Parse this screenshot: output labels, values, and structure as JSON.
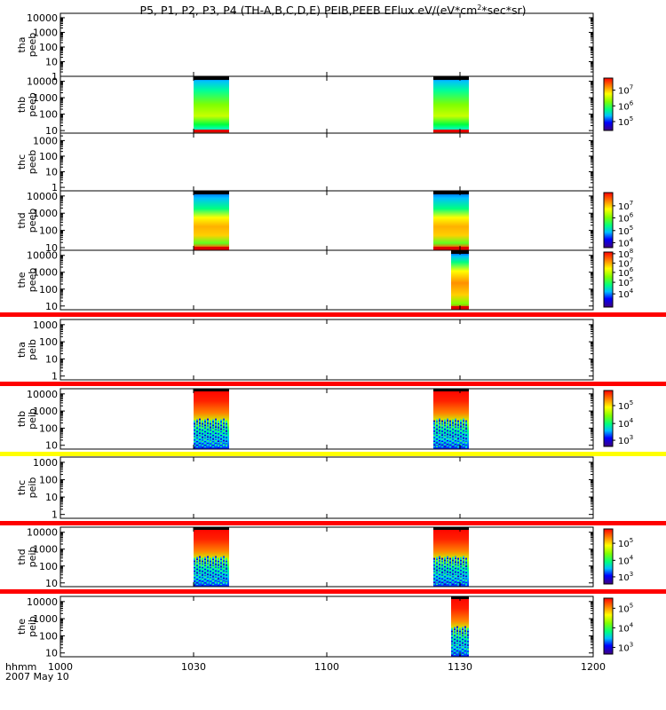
{
  "header": {
    "title_pre": "P5, P1, P2, P3, P4 (TH-A,B,C,D,E) PEIB,PEEB EFlux eV/(eV*cm",
    "title_sup": "2",
    "title_post": "*sec*sr)"
  },
  "time_axis": {
    "label": "hhmm",
    "date": "2007 May 10",
    "ticks": [
      "1000",
      "1030",
      "1100",
      "1130",
      "1200"
    ],
    "tick_minutes": [
      600,
      630,
      660,
      690,
      720
    ],
    "range_minutes": [
      600,
      720
    ]
  },
  "chart_data": [
    {
      "type": "heatmap",
      "probe": "tha",
      "instrument": "peeb",
      "ylabel": [
        "tha",
        "peeb"
      ],
      "yscale": "log",
      "yticks": [
        "10000",
        "1000",
        "100",
        "10",
        "1"
      ],
      "ylim": [
        1,
        20000
      ],
      "data_intervals": [],
      "colorbar": null
    },
    {
      "type": "heatmap",
      "probe": "thb",
      "instrument": "peeb",
      "ylabel": [
        "thb",
        "peeb"
      ],
      "yscale": "log",
      "yticks": [
        "10000",
        "1000",
        "100",
        "10"
      ],
      "ylim": [
        7,
        20000
      ],
      "data_intervals": [
        [
          630,
          638
        ],
        [
          684,
          692
        ]
      ],
      "colorbar": {
        "ticks": [
          {
            "mant": "10",
            "exp": "7",
            "pos": 0.23
          },
          {
            "mant": "10",
            "exp": "6",
            "pos": 0.53
          },
          {
            "mant": "10",
            "exp": "5",
            "pos": 0.83
          }
        ]
      }
    },
    {
      "type": "heatmap",
      "probe": "thc",
      "instrument": "peeb",
      "ylabel": [
        "thc",
        "peeb"
      ],
      "yscale": "log",
      "yticks": [
        "1000",
        "100",
        "10",
        "1"
      ],
      "ylim": [
        0.6,
        3000
      ],
      "data_intervals": [],
      "colorbar": null
    },
    {
      "type": "heatmap",
      "probe": "thd",
      "instrument": "peeb",
      "ylabel": [
        "thd",
        "peeb"
      ],
      "yscale": "log",
      "yticks": [
        "10000",
        "1000",
        "100",
        "10"
      ],
      "ylim": [
        7,
        20000
      ],
      "data_intervals": [
        [
          630,
          638
        ],
        [
          684,
          692
        ]
      ],
      "colorbar": {
        "ticks": [
          {
            "mant": "10",
            "exp": "7",
            "pos": 0.24
          },
          {
            "mant": "10",
            "exp": "6",
            "pos": 0.46
          },
          {
            "mant": "10",
            "exp": "5",
            "pos": 0.69
          },
          {
            "mant": "10",
            "exp": "4",
            "pos": 0.91
          }
        ]
      }
    },
    {
      "type": "heatmap",
      "probe": "the",
      "instrument": "peeb",
      "ylabel": [
        "the",
        "peeb"
      ],
      "yscale": "log",
      "yticks": [
        "10000",
        "1000",
        "100",
        "10"
      ],
      "ylim": [
        6,
        20000
      ],
      "data_intervals": [
        [
          688,
          692
        ]
      ],
      "colorbar": {
        "ticks": [
          {
            "mant": "10",
            "exp": "8",
            "pos": 0.03
          },
          {
            "mant": "10",
            "exp": "7",
            "pos": 0.2
          },
          {
            "mant": "10",
            "exp": "6",
            "pos": 0.37
          },
          {
            "mant": "10",
            "exp": "5",
            "pos": 0.55
          },
          {
            "mant": "10",
            "exp": "4",
            "pos": 0.76
          }
        ]
      }
    },
    {
      "type": "heatmap",
      "probe": "tha",
      "instrument": "peib",
      "ylabel": [
        "tha",
        "peib"
      ],
      "yscale": "log",
      "yticks": [
        "1000",
        "100",
        "10",
        "1"
      ],
      "ylim": [
        0.6,
        2000
      ],
      "data_intervals": [],
      "colorbar": null,
      "top_bar": "#ff0000"
    },
    {
      "type": "heatmap",
      "probe": "thb",
      "instrument": "peib",
      "ylabel": [
        "thb",
        "peib"
      ],
      "yscale": "log",
      "yticks": [
        "10000",
        "1000",
        "100",
        "10"
      ],
      "ylim": [
        6,
        20000
      ],
      "data_intervals": [
        [
          630,
          638
        ],
        [
          684,
          692
        ]
      ],
      "colorbar": {
        "ticks": [
          {
            "mant": "10",
            "exp": "5",
            "pos": 0.27
          },
          {
            "mant": "10",
            "exp": "4",
            "pos": 0.59
          },
          {
            "mant": "10",
            "exp": "3",
            "pos": 0.89
          }
        ]
      },
      "top_bar": "#ff0000"
    },
    {
      "type": "heatmap",
      "probe": "thc",
      "instrument": "peib",
      "ylabel": [
        "thc",
        "peib"
      ],
      "yscale": "log",
      "yticks": [
        "1000",
        "100",
        "10",
        "1"
      ],
      "ylim": [
        0.6,
        2000
      ],
      "data_intervals": [],
      "colorbar": null,
      "top_bar": "#ffff00"
    },
    {
      "type": "heatmap",
      "probe": "thd",
      "instrument": "peib",
      "ylabel": [
        "thd",
        "peib"
      ],
      "yscale": "log",
      "yticks": [
        "10000",
        "1000",
        "100",
        "10"
      ],
      "ylim": [
        6,
        20000
      ],
      "data_intervals": [
        [
          630,
          638
        ],
        [
          684,
          692
        ]
      ],
      "colorbar": {
        "ticks": [
          {
            "mant": "10",
            "exp": "5",
            "pos": 0.26
          },
          {
            "mant": "10",
            "exp": "4",
            "pos": 0.57
          },
          {
            "mant": "10",
            "exp": "3",
            "pos": 0.87
          }
        ]
      },
      "top_bar": "#ff0000"
    },
    {
      "type": "heatmap",
      "probe": "the",
      "instrument": "peib",
      "ylabel": [
        "the",
        "peib"
      ],
      "yscale": "log",
      "yticks": [
        "10000",
        "1000",
        "100",
        "10"
      ],
      "ylim": [
        6,
        20000
      ],
      "data_intervals": [
        [
          688,
          692
        ]
      ],
      "colorbar": {
        "ticks": [
          {
            "mant": "10",
            "exp": "5",
            "pos": 0.18
          },
          {
            "mant": "10",
            "exp": "4",
            "pos": 0.53
          },
          {
            "mant": "10",
            "exp": "3",
            "pos": 0.88
          }
        ]
      },
      "top_bar": "#ff0000"
    }
  ]
}
